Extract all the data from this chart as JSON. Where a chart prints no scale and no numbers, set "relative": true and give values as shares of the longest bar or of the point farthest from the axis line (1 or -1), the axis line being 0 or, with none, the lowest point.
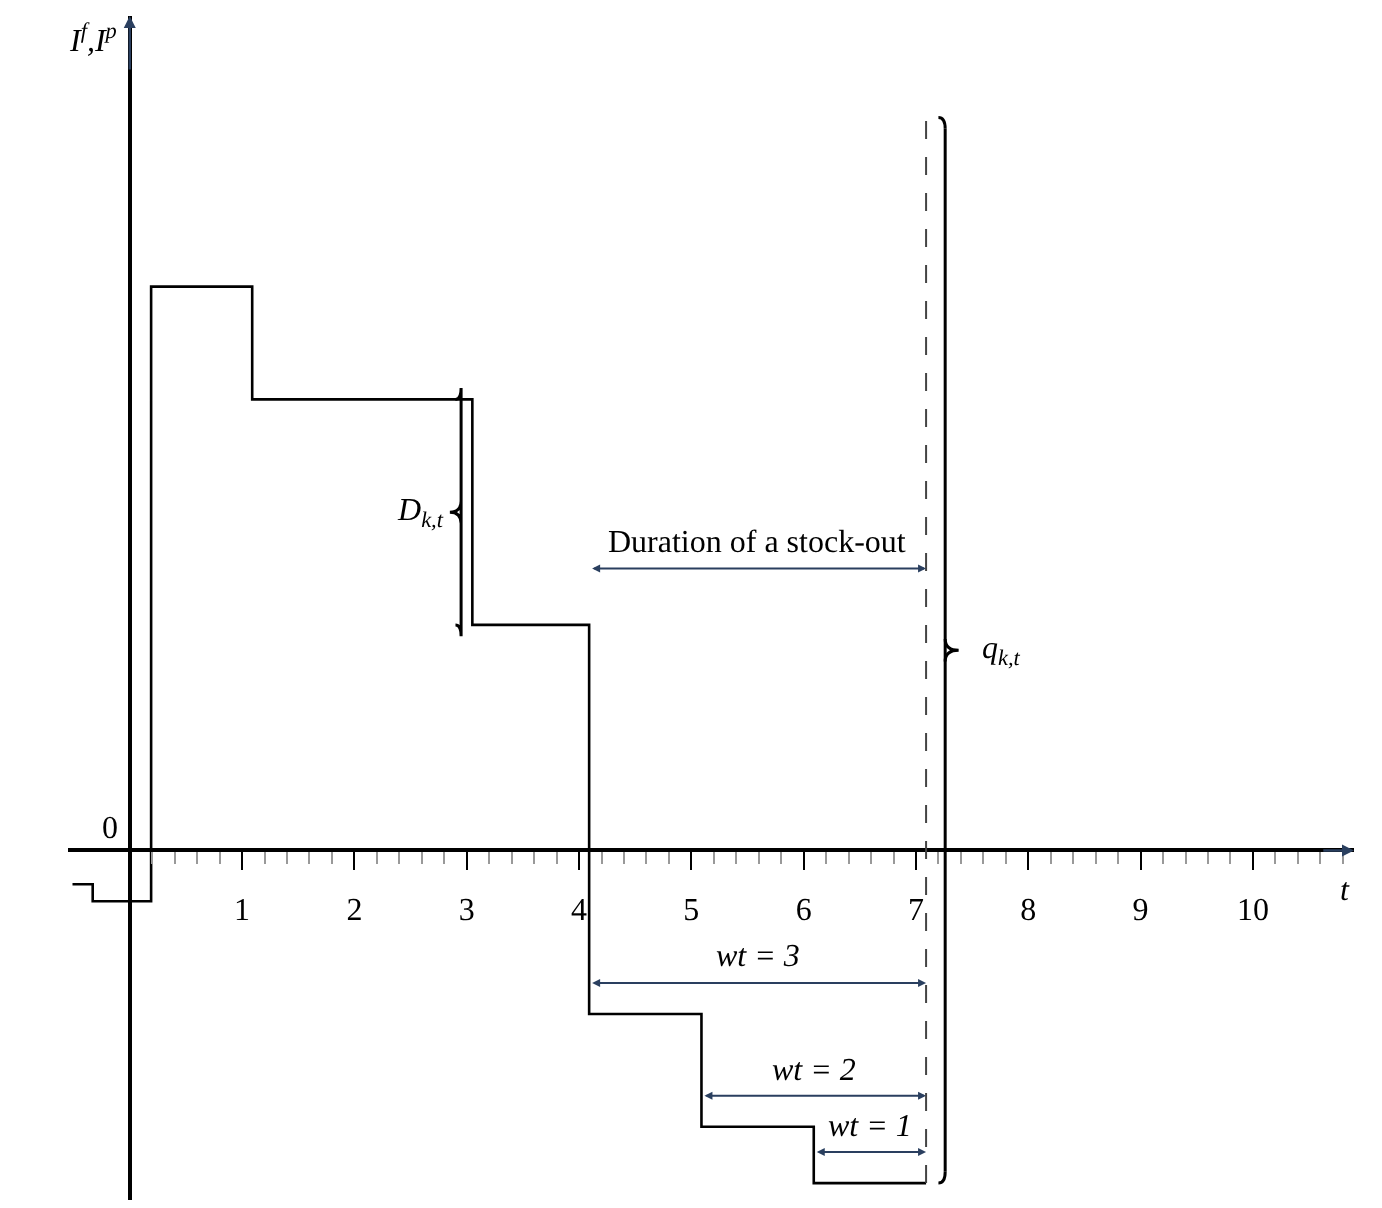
{
  "chart_data": {
    "type": "step",
    "relative": true,
    "color": "#000000",
    "x": [
      -0.51,
      -0.33,
      0.19,
      1.09,
      3.05,
      4.09,
      5.09,
      6.09,
      7.09
    ],
    "values": [
      -0.06,
      -0.09,
      1,
      0.8,
      0.4,
      -0.29,
      -0.49,
      -0.59,
      -0.59
    ],
    "xlabel": "t",
    "xlim": [
      -0.55,
      10.9
    ],
    "xticks": [
      1,
      2,
      3,
      4,
      5,
      6,
      7,
      8,
      9,
      10,
      {
        "value": 0.2,
        "label": null
      },
      {
        "value": 0.4,
        "label": null
      },
      {
        "value": 0.6,
        "label": null
      },
      {
        "value": 0.8,
        "label": null
      },
      {
        "value": 1.2,
        "label": null
      },
      {
        "value": 1.4,
        "label": null
      },
      {
        "value": 1.6,
        "label": null
      },
      {
        "value": 1.8,
        "label": null
      },
      {
        "value": 2.2,
        "label": null
      },
      {
        "value": 2.4,
        "label": null
      },
      {
        "value": 2.6,
        "label": null
      },
      {
        "value": 2.8,
        "label": null
      },
      {
        "value": 3.2,
        "label": null
      },
      {
        "value": 3.4,
        "label": null
      },
      {
        "value": 3.6,
        "label": null
      },
      {
        "value": 3.8,
        "label": null
      },
      {
        "value": 4.2,
        "label": null
      },
      {
        "value": 4.4,
        "label": null
      },
      {
        "value": 4.6,
        "label": null
      },
      {
        "value": 4.8,
        "label": null
      },
      {
        "value": 5.2,
        "label": null
      },
      {
        "value": 5.4,
        "label": null
      },
      {
        "value": 5.6,
        "label": null
      },
      {
        "value": 5.8,
        "label": null
      },
      {
        "value": 6.2,
        "label": null
      },
      {
        "value": 6.4,
        "label": null
      },
      {
        "value": 6.6,
        "label": null
      },
      {
        "value": 6.8,
        "label": null
      },
      {
        "value": 7.2,
        "label": null
      },
      {
        "value": 7.4,
        "label": null
      },
      {
        "value": 7.6,
        "label": null
      },
      {
        "value": 7.8,
        "label": null
      },
      {
        "value": 8.2,
        "label": null
      },
      {
        "value": 8.4,
        "label": null
      },
      {
        "value": 8.6,
        "label": null
      },
      {
        "value": 8.8,
        "label": null
      },
      {
        "value": 9.2,
        "label": null
      },
      {
        "value": 9.4,
        "label": null
      },
      {
        "value": 9.6,
        "label": null
      },
      {
        "value": 9.8,
        "label": null
      },
      {
        "value": 10.2,
        "label": null
      },
      {
        "value": 10.4,
        "label": null
      },
      {
        "value": 10.6,
        "label": null
      },
      {
        "value": 10.8,
        "label": null
      }
    ],
    "ref_lines": [
      {
        "axis": "x",
        "value": 7.09,
        "color": "#444444",
        "line_style": "dashed"
      },
      {
        "axis": "x",
        "value": 7.26,
        "color": "#000000",
        "label": "q$_{k,t}$"
      }
    ],
    "annotations": [
      {
        "text": "D$_{k,t}$",
        "x": 3.05,
        "y": 0.6
      },
      "Duration of a stock-out",
      "wt = 3",
      "wt = 2",
      "wt = 1",
      "0",
      "I$^{f}$,I$^{p}$"
    ]
  }
}
